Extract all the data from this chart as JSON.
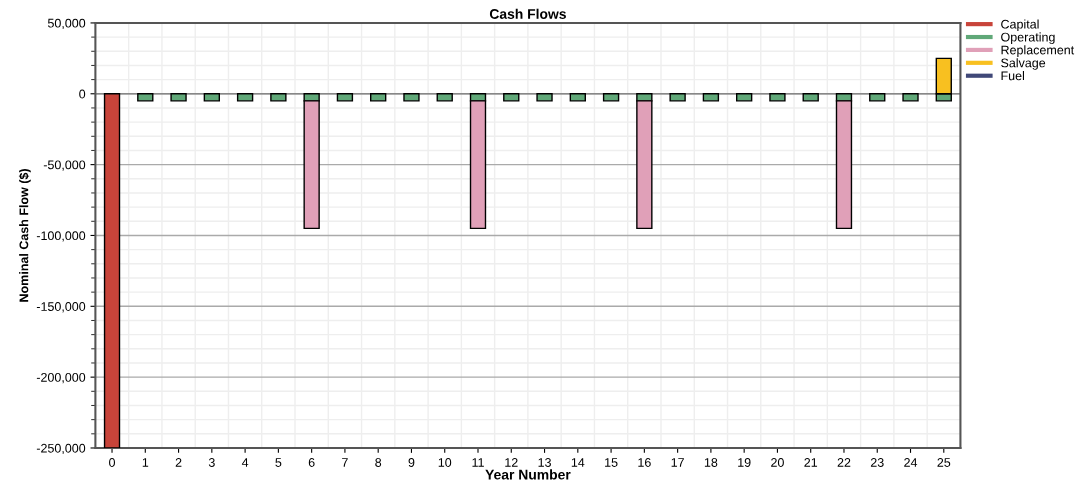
{
  "chart_data": {
    "type": "bar",
    "title": "Cash Flows",
    "xlabel": "Year Number",
    "ylabel": "Nominal Cash Flow ($)",
    "categories": [
      "0",
      "1",
      "2",
      "3",
      "4",
      "5",
      "6",
      "7",
      "8",
      "9",
      "10",
      "11",
      "12",
      "13",
      "14",
      "15",
      "16",
      "17",
      "18",
      "19",
      "20",
      "21",
      "22",
      "23",
      "24",
      "25"
    ],
    "stacked": true,
    "series": [
      {
        "name": "Capital",
        "color": "#c8443a",
        "values": [
          -250000,
          null,
          null,
          null,
          null,
          null,
          null,
          null,
          null,
          null,
          null,
          null,
          null,
          null,
          null,
          null,
          null,
          null,
          null,
          null,
          null,
          null,
          null,
          null,
          null,
          null
        ]
      },
      {
        "name": "Operating",
        "color": "#60a878",
        "values": [
          null,
          -5000,
          -5000,
          -5000,
          -5000,
          -5000,
          -5000,
          -5000,
          -5000,
          -5000,
          -5000,
          -5000,
          -5000,
          -5000,
          -5000,
          -5000,
          -5000,
          -5000,
          -5000,
          -5000,
          -5000,
          -5000,
          -5000,
          -5000,
          -5000,
          -5000
        ]
      },
      {
        "name": "Replacement",
        "color": "#e0a0b8",
        "values": [
          null,
          null,
          null,
          null,
          null,
          null,
          -90000,
          null,
          null,
          null,
          null,
          -90000,
          null,
          null,
          null,
          null,
          -90000,
          null,
          null,
          null,
          null,
          null,
          -90000,
          null,
          null,
          null
        ]
      },
      {
        "name": "Salvage",
        "color": "#f8c020",
        "values": [
          null,
          null,
          null,
          null,
          null,
          null,
          null,
          null,
          null,
          null,
          null,
          null,
          null,
          null,
          null,
          null,
          null,
          null,
          null,
          null,
          null,
          null,
          null,
          null,
          null,
          25000
        ]
      },
      {
        "name": "Fuel",
        "color": "#404878",
        "values": [
          null,
          null,
          null,
          null,
          null,
          null,
          null,
          null,
          null,
          null,
          null,
          null,
          null,
          null,
          null,
          null,
          null,
          null,
          null,
          null,
          null,
          null,
          null,
          null,
          null,
          null
        ]
      }
    ],
    "ylim": [
      -250000,
      50000
    ],
    "yticks": [
      {
        "value": -250000,
        "label": "-250,000"
      },
      {
        "value": -200000,
        "label": "-200,000"
      },
      {
        "value": -150000,
        "label": "-150,000"
      },
      {
        "value": -100000,
        "label": "-100,000"
      },
      {
        "value": -50000,
        "label": "-50,000"
      },
      0,
      {
        "value": 50000,
        "label": "50,000"
      }
    ],
    "grid": true,
    "legend": "top right"
  }
}
